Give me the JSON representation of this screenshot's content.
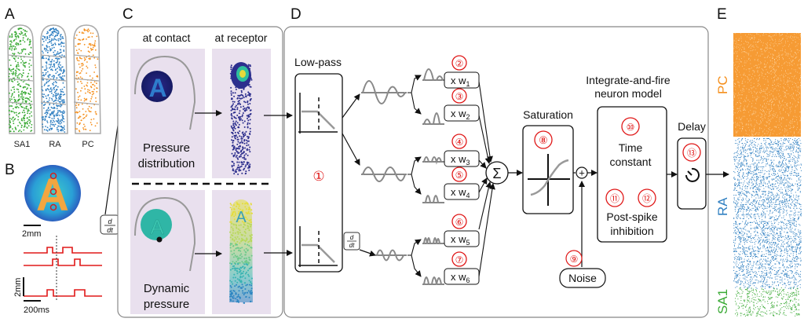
{
  "panels": {
    "A": "A",
    "B": "B",
    "C": "C",
    "D": "D",
    "E": "E"
  },
  "panel_a": {
    "labels": [
      "SA1",
      "RA",
      "PC"
    ]
  },
  "panel_b": {
    "glyph": "A",
    "scale_top": "2mm",
    "scale_left": "2mm",
    "scale_bottom": "200ms",
    "deriv_top": "d",
    "deriv_bottom": "dt"
  },
  "panel_c": {
    "col_contact": "at contact",
    "col_receptor": "at receptor",
    "pressure_line1": "Pressure",
    "pressure_line2": "distribution",
    "dynamic_line1": "Dynamic",
    "dynamic_line2": "pressure"
  },
  "panel_d": {
    "lowpass": "Low-pass",
    "filter_id": "①",
    "deriv_top": "d",
    "deriv_bottom": "dt",
    "weights": [
      {
        "id": "②",
        "sub": "1"
      },
      {
        "id": "③",
        "sub": "2"
      },
      {
        "id": "④",
        "sub": "3"
      },
      {
        "id": "⑤",
        "sub": "4"
      },
      {
        "id": "⑥",
        "sub": "5"
      },
      {
        "id": "⑦",
        "sub": "6"
      }
    ],
    "weight_prefix": "x w",
    "sum_symbol": "Σ",
    "saturation": "Saturation",
    "saturation_id": "⑧",
    "noise": "Noise",
    "noise_id": "⑨",
    "plus": "+",
    "if_line1": "Integrate-and-fire",
    "if_line2": "neuron model",
    "time_const_id": "⑩",
    "time_line1": "Time",
    "time_line2": "constant",
    "inhib_ids": [
      "⑪",
      "⑫"
    ],
    "inhib_line1": "Post-spike",
    "inhib_line2": "inhibition",
    "delay": "Delay",
    "delay_id": "⑬"
  },
  "panel_e": {
    "labels": [
      "PC",
      "RA",
      "SA1"
    ]
  },
  "colors": {
    "sa1": "#3aaa35",
    "ra": "#2f7fc1",
    "pc": "#f5901e",
    "red": "#e01818",
    "panel_bg": "#e9e0ee",
    "frame": "#888888"
  }
}
